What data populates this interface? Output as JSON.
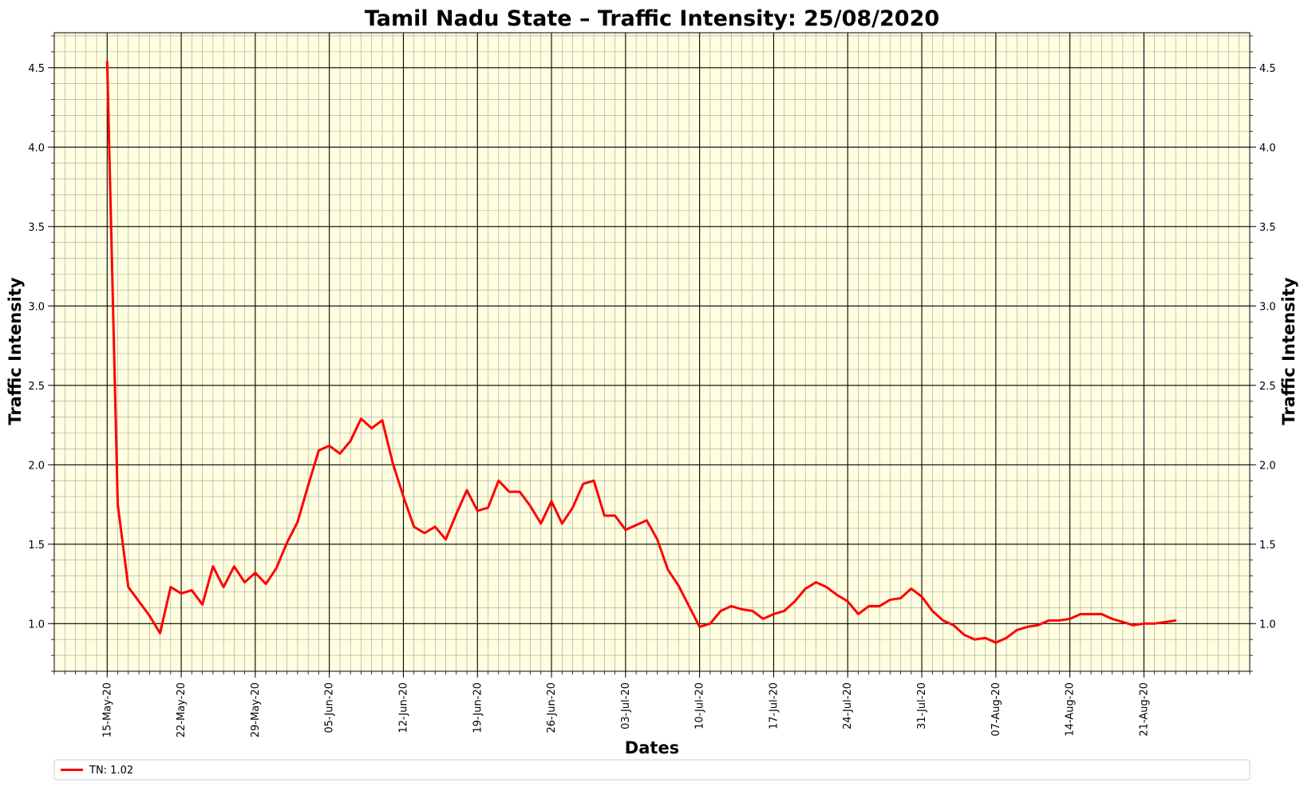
{
  "chart_data": {
    "type": "line",
    "title": "Tamil Nadu State – Traffic Intensity:  25/08/2020",
    "xlabel": "Dates",
    "ylabel": "Traffic Intensity",
    "x_start_date": "2020-05-15",
    "xlim_dates": [
      "2020-05-10",
      "2020-08-31"
    ],
    "ylim": [
      0.7,
      4.72
    ],
    "x_ticks": [
      "15-May-20",
      "22-May-20",
      "29-May-20",
      "05-Jun-20",
      "12-Jun-20",
      "19-Jun-20",
      "26-Jun-20",
      "03-Jul-20",
      "10-Jul-20",
      "17-Jul-20",
      "24-Jul-20",
      "31-Jul-20",
      "07-Aug-20",
      "14-Aug-20",
      "21-Aug-20"
    ],
    "y_ticks": [
      "1.0",
      "1.5",
      "2.0",
      "2.5",
      "3.0",
      "3.5",
      "4.0",
      "4.5"
    ],
    "grid": true,
    "background_color": "#ffffe0",
    "series": [
      {
        "name": "TN: 1.02",
        "color": "#ff0000",
        "values": [
          4.54,
          1.75,
          1.23,
          1.14,
          1.05,
          0.94,
          1.23,
          1.19,
          1.21,
          1.12,
          1.36,
          1.23,
          1.36,
          1.26,
          1.32,
          1.25,
          1.35,
          1.51,
          1.64,
          1.87,
          2.09,
          2.12,
          2.07,
          2.15,
          2.29,
          2.23,
          2.28,
          2.01,
          1.8,
          1.61,
          1.57,
          1.61,
          1.53,
          1.69,
          1.84,
          1.71,
          1.73,
          1.9,
          1.83,
          1.83,
          1.74,
          1.63,
          1.77,
          1.63,
          1.73,
          1.88,
          1.9,
          1.68,
          1.68,
          1.59,
          1.62,
          1.65,
          1.53,
          1.34,
          1.24,
          1.11,
          0.98,
          1.0,
          1.08,
          1.11,
          1.09,
          1.08,
          1.03,
          1.06,
          1.08,
          1.14,
          1.22,
          1.26,
          1.23,
          1.18,
          1.14,
          1.06,
          1.11,
          1.11,
          1.15,
          1.16,
          1.22,
          1.17,
          1.08,
          1.02,
          0.99,
          0.93,
          0.9,
          0.91,
          0.88,
          0.91,
          0.96,
          0.98,
          0.99,
          1.02,
          1.02,
          1.03,
          1.06,
          1.06,
          1.06,
          1.03,
          1.01,
          0.99,
          1.0,
          1.0,
          1.01,
          1.02
        ]
      }
    ],
    "legend": "bottom"
  }
}
